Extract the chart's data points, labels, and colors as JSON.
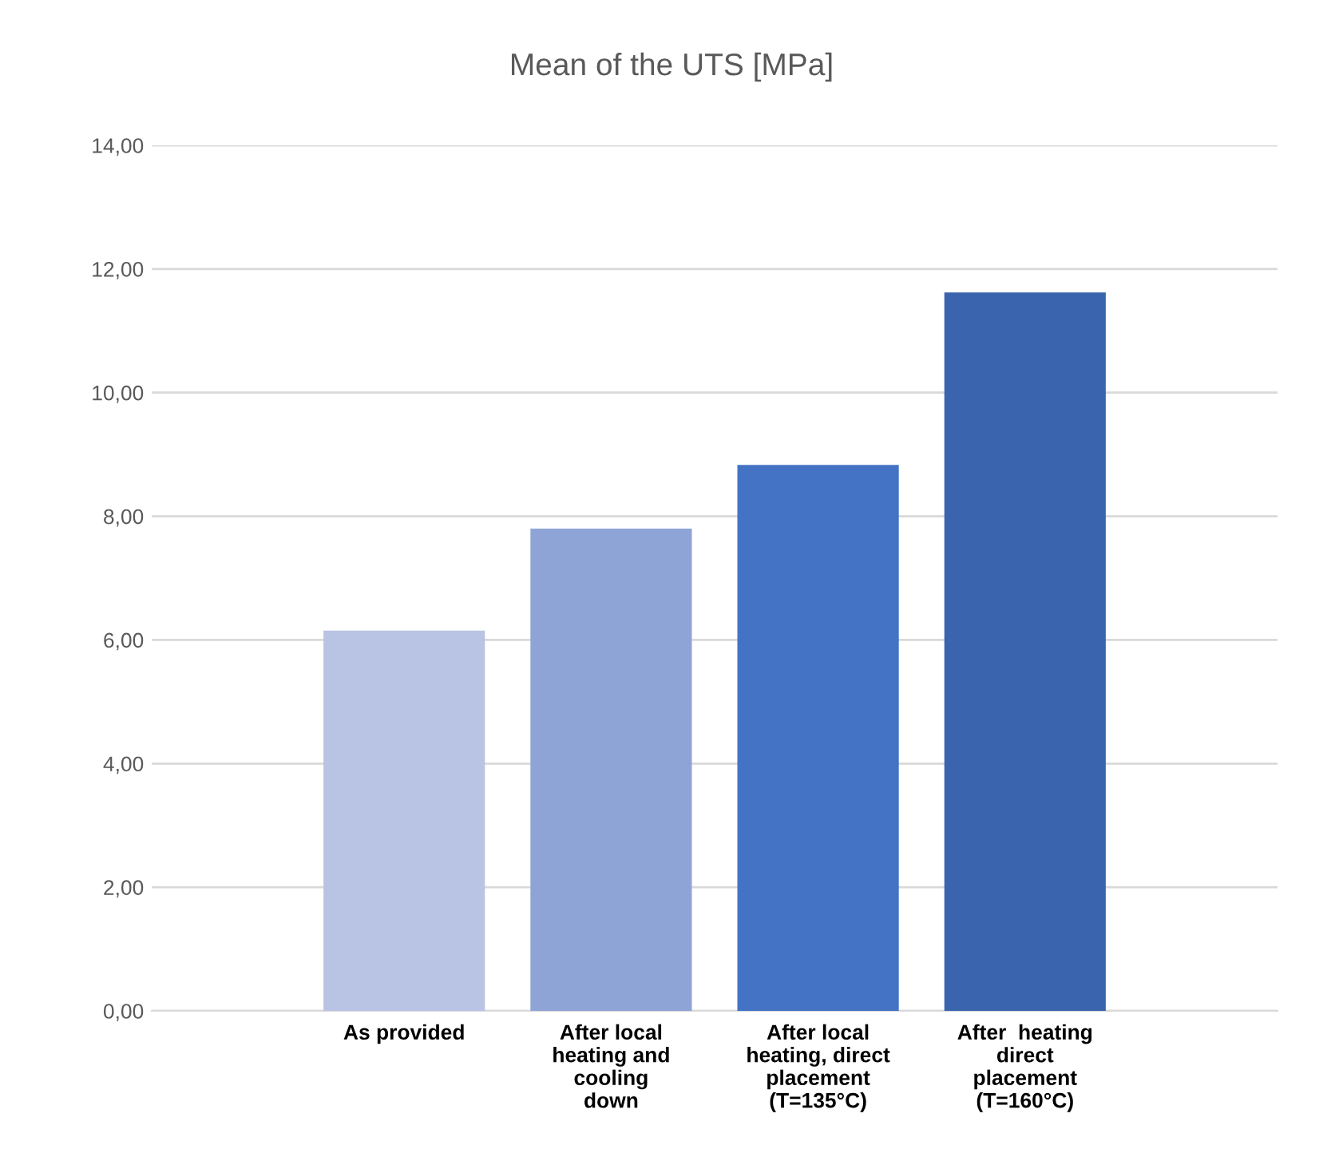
{
  "chart_data": {
    "type": "bar",
    "title": "Mean of the UTS [MPa]",
    "categories": [
      "As provided",
      "After local\nheating and\ncooling\ndown",
      "After local\nheating, direct\nplacement\n(T=135°C)",
      "After  heating\ndirect\nplacement\n(T=160°C)"
    ],
    "values": [
      6.15,
      7.8,
      8.83,
      11.62
    ],
    "colors": [
      "#b9c3e3",
      "#8fa4d6",
      "#4472c4",
      "#3a64ae"
    ],
    "ylim": [
      0,
      14
    ],
    "yticks": [
      {
        "value": 0,
        "label": "0,00"
      },
      {
        "value": 2,
        "label": "2,00"
      },
      {
        "value": 4,
        "label": "4,00"
      },
      {
        "value": 6,
        "label": "6,00"
      },
      {
        "value": 8,
        "label": "8,00"
      },
      {
        "value": 10,
        "label": "10,00"
      },
      {
        "value": 12,
        "label": "12,00"
      },
      {
        "value": 14,
        "label": "14,00"
      }
    ],
    "grid": "y"
  }
}
